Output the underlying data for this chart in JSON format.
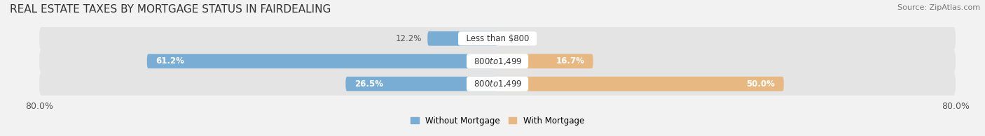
{
  "title": "REAL ESTATE TAXES BY MORTGAGE STATUS IN FAIRDEALING",
  "source": "Source: ZipAtlas.com",
  "categories": [
    "Less than $800",
    "$800 to $1,499",
    "$800 to $1,499"
  ],
  "without_mortgage": [
    12.2,
    61.2,
    26.5
  ],
  "with_mortgage": [
    0.0,
    16.7,
    50.0
  ],
  "color_without": "#7aadd4",
  "color_with": "#e8b882",
  "xlim": [
    -80,
    80
  ],
  "xticklabels_left": "80.0%",
  "xticklabels_right": "80.0%",
  "legend_labels": [
    "Without Mortgage",
    "With Mortgage"
  ],
  "bar_height": 0.62,
  "background_color": "#f2f2f2",
  "row_bg_color": "#e4e4e4",
  "title_fontsize": 11,
  "label_fontsize": 8.5,
  "tick_fontsize": 9,
  "source_fontsize": 8,
  "inside_label_color": "white",
  "outside_label_color": "#555555"
}
